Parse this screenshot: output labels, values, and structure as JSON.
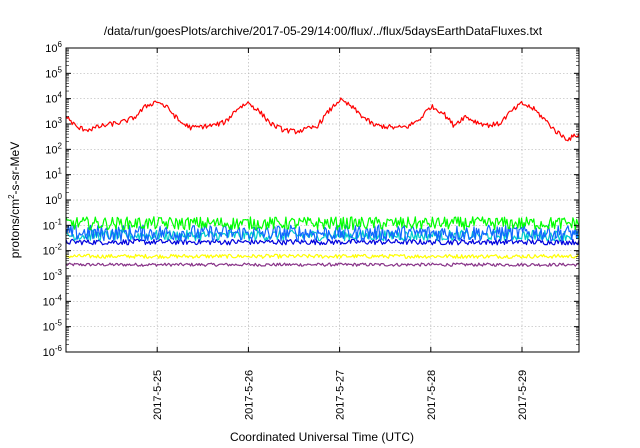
{
  "chart_data": {
    "type": "line",
    "title": "/data/run/goesPlots/archive/2017-05-29/14:00/flux/../flux/5daysEarthDataFluxes.txt",
    "xlabel": "Coordinated Universal Time (UTC)",
    "ylabel": {
      "pre": "protons/cm",
      "sup": "2",
      "post": "-s-sr-MeV"
    },
    "y_scale": "log",
    "ylim_exponents": [
      -6,
      6
    ],
    "xlim_days": [
      "2017-05-24T00:00",
      "2017-05-29T15:00"
    ],
    "x_ticks": [
      "2017-5-25",
      "2017-5-26",
      "2017-5-27",
      "2017-5-28",
      "2017-5-29"
    ],
    "y_ticks": [
      {
        "base": "10",
        "exp": "-6"
      },
      {
        "base": "10",
        "exp": "-5"
      },
      {
        "base": "10",
        "exp": "-4"
      },
      {
        "base": "10",
        "exp": "-3"
      },
      {
        "base": "10",
        "exp": "-2"
      },
      {
        "base": "10",
        "exp": "-1"
      },
      {
        "base": "10",
        "exp": "0"
      },
      {
        "base": "10",
        "exp": "1"
      },
      {
        "base": "10",
        "exp": "2"
      },
      {
        "base": "10",
        "exp": "3"
      },
      {
        "base": "10",
        "exp": "4"
      },
      {
        "base": "10",
        "exp": "5"
      },
      {
        "base": "10",
        "exp": "6"
      }
    ],
    "grid": true,
    "series": [
      {
        "color": "#ff0000",
        "points": [
          [
            "2017-05-24T00:00",
            2000
          ],
          [
            "2017-05-24T03:00",
            700
          ],
          [
            "2017-05-24T06:00",
            600
          ],
          [
            "2017-05-24T09:00",
            800
          ],
          [
            "2017-05-24T12:00",
            1000
          ],
          [
            "2017-05-24T15:00",
            1200
          ],
          [
            "2017-05-24T18:00",
            1800
          ],
          [
            "2017-05-24T21:00",
            5000
          ],
          [
            "2017-05-25T00:00",
            8000
          ],
          [
            "2017-05-25T03:00",
            4000
          ],
          [
            "2017-05-25T06:00",
            1200
          ],
          [
            "2017-05-25T09:00",
            700
          ],
          [
            "2017-05-25T12:00",
            800
          ],
          [
            "2017-05-25T15:00",
            900
          ],
          [
            "2017-05-25T18:00",
            1200
          ],
          [
            "2017-05-25T21:00",
            4000
          ],
          [
            "2017-05-26T00:00",
            7000
          ],
          [
            "2017-05-26T03:00",
            3000
          ],
          [
            "2017-05-26T06:00",
            1000
          ],
          [
            "2017-05-26T09:00",
            600
          ],
          [
            "2017-05-26T12:00",
            500
          ],
          [
            "2017-05-26T15:00",
            600
          ],
          [
            "2017-05-26T18:00",
            800
          ],
          [
            "2017-05-26T21:00",
            3000
          ],
          [
            "2017-05-27T00:00",
            9000
          ],
          [
            "2017-05-27T03:00",
            5000
          ],
          [
            "2017-05-27T06:00",
            2000
          ],
          [
            "2017-05-27T09:00",
            900
          ],
          [
            "2017-05-27T12:00",
            800
          ],
          [
            "2017-05-27T15:00",
            700
          ],
          [
            "2017-05-27T18:00",
            800
          ],
          [
            "2017-05-27T21:00",
            1500
          ],
          [
            "2017-05-28T00:00",
            5000
          ],
          [
            "2017-05-28T03:00",
            3000
          ],
          [
            "2017-05-28T06:00",
            900
          ],
          [
            "2017-05-28T09:00",
            2000
          ],
          [
            "2017-05-28T12:00",
            1200
          ],
          [
            "2017-05-28T15:00",
            900
          ],
          [
            "2017-05-28T18:00",
            1000
          ],
          [
            "2017-05-28T21:00",
            3000
          ],
          [
            "2017-05-29T00:00",
            6500
          ],
          [
            "2017-05-29T03:00",
            4000
          ],
          [
            "2017-05-29T06:00",
            1500
          ],
          [
            "2017-05-29T09:00",
            500
          ],
          [
            "2017-05-29T12:00",
            250
          ],
          [
            "2017-05-29T15:00",
            400
          ]
        ],
        "noise": 0.1
      },
      {
        "color": "#00ff00",
        "level": 0.12,
        "noise": 0.16
      },
      {
        "color": "#00cccc",
        "level": 0.04,
        "noise": 0.13
      },
      {
        "color": "#1166ff",
        "level": 0.05,
        "noise": 0.2
      },
      {
        "color": "#0000dd",
        "level": 0.022,
        "noise": 0.07
      },
      {
        "color": "#ffff00",
        "level": 0.006,
        "noise": 0.05
      },
      {
        "color": "#883388",
        "level": 0.0028,
        "noise": 0.04
      }
    ]
  }
}
